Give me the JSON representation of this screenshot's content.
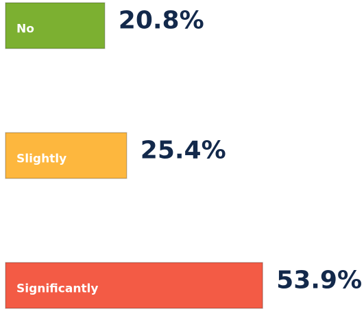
{
  "chart_data": {
    "type": "bar",
    "orientation": "horizontal",
    "categories": [
      "No",
      "Slightly",
      "Significantly"
    ],
    "values": [
      20.8,
      25.4,
      53.9
    ],
    "value_labels": [
      "20.8%",
      "25.4%",
      "53.9%"
    ],
    "colors": [
      "#7cb031",
      "#fdb73e",
      "#f35b45"
    ]
  }
}
